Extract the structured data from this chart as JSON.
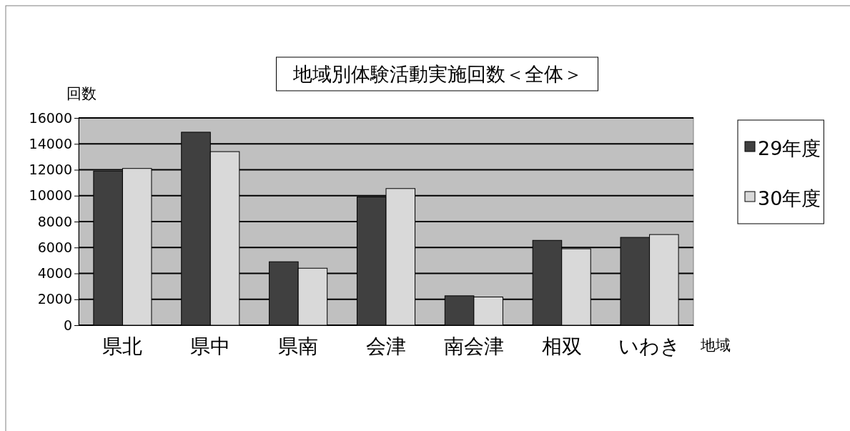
{
  "chart_data": {
    "type": "bar",
    "title": "地域別体験活動実施回数＜全体＞",
    "ylabel": "回数",
    "xlabel": "地域",
    "categories": [
      "県北",
      "県中",
      "県南",
      "会津",
      "南会津",
      "相双",
      "いわき"
    ],
    "series": [
      {
        "name": "29年度",
        "color": "#404040",
        "values": [
          11900,
          14900,
          4900,
          9900,
          2270,
          6550,
          6780
        ]
      },
      {
        "name": "30年度",
        "color": "#d9d9d9",
        "values": [
          12100,
          13400,
          4400,
          10550,
          2180,
          5900,
          7000
        ]
      }
    ],
    "ylim": [
      0,
      16000
    ],
    "yticks": [
      0,
      2000,
      4000,
      6000,
      8000,
      10000,
      12000,
      14000,
      16000
    ],
    "grid": "y",
    "legend": "right"
  }
}
